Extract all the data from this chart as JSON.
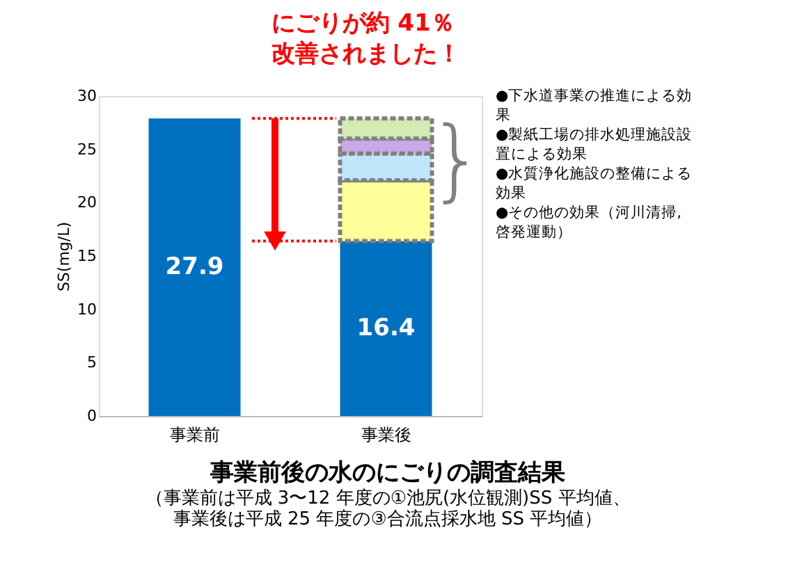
{
  "chart_data": {
    "type": "bar",
    "stacked": true,
    "title": "事業前後の水のにごりの調査結果",
    "subtitle": "（事業前は平成 3〜12 年度の①池尻(水位観測)SS 平均値、事業後は平成 25 年度の③合流点採水地 SS 平均値）",
    "ylabel": "SS(mg/L)",
    "categories": [
      "事業前",
      "事業後"
    ],
    "series": [
      {
        "color": "#0070c0",
        "values": [
          27.9,
          16.4
        ],
        "value_labels": [
          "27.9",
          "16.4"
        ]
      },
      {
        "color": "#ffff99",
        "values": [
          0,
          5.7
        ]
      },
      {
        "color": "#bfe6fb",
        "values": [
          0,
          2.5
        ]
      },
      {
        "color": "#c9a9e6",
        "values": [
          0,
          1.4
        ]
      },
      {
        "color": "#d4ecb4",
        "values": [
          0,
          1.9
        ]
      }
    ],
    "ylim": [
      0,
      30
    ],
    "yticks": [
      0,
      5,
      10,
      15,
      20,
      25,
      30
    ],
    "grid": false,
    "ref_lines": [
      {
        "axis": "y",
        "value": 27.9,
        "color": "#ff0000",
        "line_style": "dotted"
      },
      {
        "axis": "y",
        "value": 16.4,
        "color": "#ff0000",
        "line_style": "dotted"
      }
    ],
    "annotations": [
      "にごりが約 41％改善されました！",
      "●下水道事業の推進による効果",
      "●製紙工場の排水処理施設設置による効果",
      "●水質浄化施設の整備による効果",
      "●その他の効果（河川清掃, 啓発運動）",
      "}"
    ]
  }
}
